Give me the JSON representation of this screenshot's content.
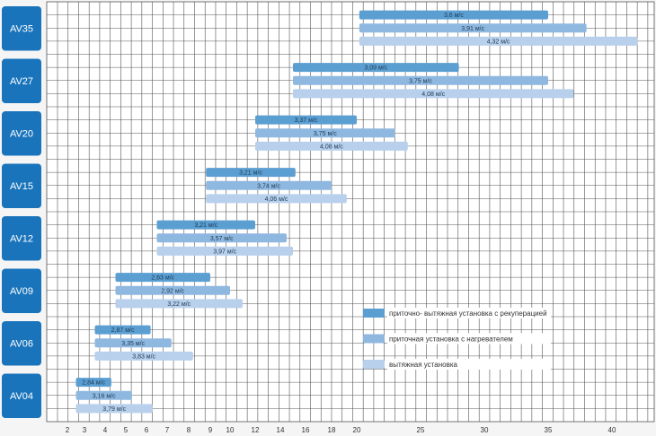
{
  "chart_data": {
    "type": "bar",
    "orientation": "horizontal-range",
    "x_tick_labels": [
      "2",
      "3",
      "4",
      "5",
      "6",
      "7",
      "8",
      "9",
      "10",
      "12",
      "14",
      "16",
      "18",
      "20",
      "25",
      "30",
      "35",
      "40"
    ],
    "grid": true,
    "legend_position": "bottom-right",
    "colors": {
      "group_label_bg": "#1a74bb",
      "grid": "#555555",
      "background": "#f5f5f5"
    },
    "series": [
      {
        "name": "приточно- вытяжная установка с рекуперацией",
        "color": "#5b9fd2"
      },
      {
        "name": "приточная установка с нагревателем",
        "color": "#8fb8e0"
      },
      {
        "name": "вытяжная установка",
        "color": "#b8d0ec"
      }
    ],
    "groups": [
      {
        "label": "AV35",
        "bars": [
          {
            "start": 20.2,
            "end": 35,
            "label": "3,6 м/с"
          },
          {
            "start": 20.2,
            "end": 38,
            "label": "3,91 м/с"
          },
          {
            "start": 20.2,
            "end": 42,
            "label": "4,32 м/с"
          }
        ]
      },
      {
        "label": "AV27",
        "bars": [
          {
            "start": 15,
            "end": 28,
            "label": "3,09 м/с"
          },
          {
            "start": 15,
            "end": 35,
            "label": "3,75 м/с"
          },
          {
            "start": 15,
            "end": 37,
            "label": "4,08 м/с"
          }
        ]
      },
      {
        "label": "AV20",
        "bars": [
          {
            "start": 12,
            "end": 20,
            "label": "3,37 м/с"
          },
          {
            "start": 12,
            "end": 23,
            "label": "3,75 м/с"
          },
          {
            "start": 12,
            "end": 24,
            "label": "4,08 м/с"
          }
        ]
      },
      {
        "label": "AV15",
        "bars": [
          {
            "start": 8.8,
            "end": 15.2,
            "label": "3,21 м/с"
          },
          {
            "start": 8.8,
            "end": 18,
            "label": "3,74 м/с"
          },
          {
            "start": 8.8,
            "end": 19.2,
            "label": "4,06 м/с"
          }
        ]
      },
      {
        "label": "AV12",
        "bars": [
          {
            "start": 6.5,
            "end": 12,
            "label": "3,21 м/с"
          },
          {
            "start": 6.5,
            "end": 14.5,
            "label": "3,57 м/с"
          },
          {
            "start": 6.5,
            "end": 15,
            "label": "3,97 м/с"
          }
        ]
      },
      {
        "label": "AV09",
        "bars": [
          {
            "start": 4.5,
            "end": 9,
            "label": "2,63 м/с"
          },
          {
            "start": 4.5,
            "end": 10,
            "label": "2,92 м/с"
          },
          {
            "start": 4.5,
            "end": 11,
            "label": "3,22 м/с"
          }
        ]
      },
      {
        "label": "AV06",
        "bars": [
          {
            "start": 3.5,
            "end": 6.2,
            "label": "2,87 м/с"
          },
          {
            "start": 3.5,
            "end": 7.2,
            "label": "3,35 м/с"
          },
          {
            "start": 3.5,
            "end": 8.2,
            "label": "3,83 м/с"
          }
        ]
      },
      {
        "label": "AV04",
        "bars": [
          {
            "start": 2.5,
            "end": 4.3,
            "label": "2,84 м/с"
          },
          {
            "start": 2.5,
            "end": 5.3,
            "label": "3,16 м/с"
          },
          {
            "start": 2.5,
            "end": 6.3,
            "label": "3,79 м/с"
          }
        ]
      }
    ]
  }
}
